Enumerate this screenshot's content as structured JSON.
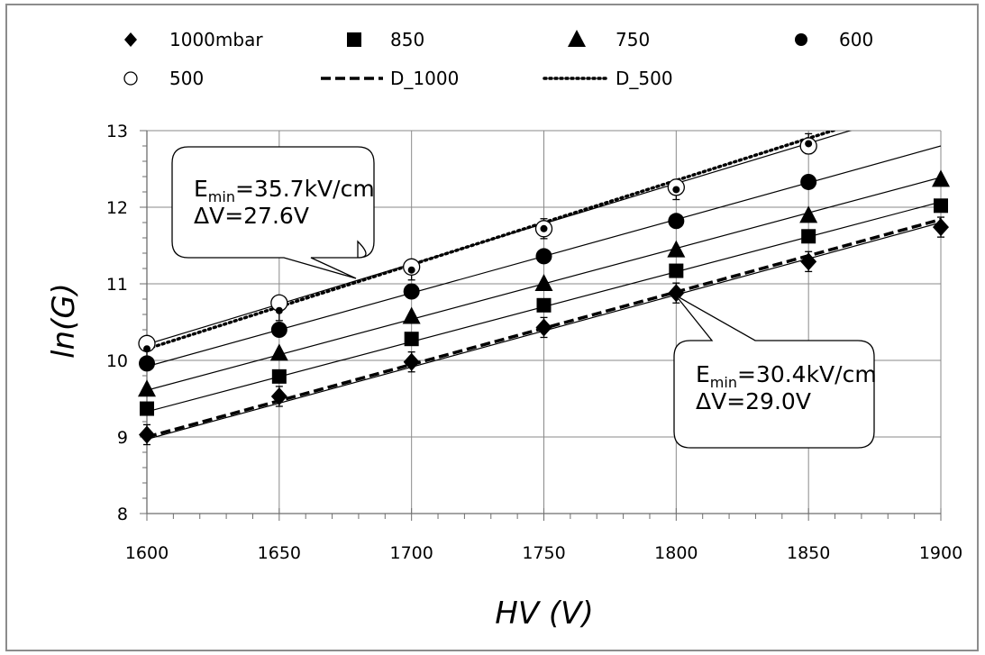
{
  "chart_data": {
    "type": "scatter",
    "xlabel": "HV (V)",
    "ylabel": "ln(G)",
    "xlim": [
      1600,
      1900
    ],
    "ylim": [
      8,
      13
    ],
    "x_ticks": [
      "1600",
      "1650",
      "1700",
      "1750",
      "1800",
      "1850",
      "1900"
    ],
    "y_ticks": [
      "8",
      "9",
      "10",
      "11",
      "12",
      "13"
    ],
    "grid": true,
    "legend_position": "top",
    "x": [
      1600,
      1650,
      1700,
      1750,
      1800,
      1850,
      1900
    ],
    "series": [
      {
        "name": "1000mbar",
        "marker": "diamond",
        "values": [
          9.03,
          9.53,
          9.98,
          10.43,
          10.88,
          11.29,
          11.74
        ],
        "fit": [
          8.97,
          11.8
        ]
      },
      {
        "name": "850",
        "marker": "square",
        "values": [
          9.37,
          9.79,
          10.28,
          10.72,
          11.17,
          11.62,
          12.02
        ],
        "fit": [
          9.33,
          12.07
        ]
      },
      {
        "name": "750",
        "marker": "triangle",
        "values": [
          9.62,
          10.09,
          10.57,
          11.0,
          11.44,
          11.89,
          12.36
        ],
        "fit": [
          9.61,
          12.39
        ]
      },
      {
        "name": "600",
        "marker": "circle-filled",
        "values": [
          9.96,
          10.4,
          10.9,
          11.36,
          11.82,
          12.33,
          null
        ],
        "fit": [
          9.92,
          12.8
        ]
      },
      {
        "name": "500",
        "marker": "circle-open",
        "values": [
          10.22,
          10.75,
          11.22,
          11.72,
          12.26,
          12.8,
          null
        ],
        "fit": [
          10.21,
          13.36
        ]
      },
      {
        "name": "D_1000",
        "line": "dashed",
        "values": [
          9.0,
          9.42,
          9.88,
          10.38,
          10.88,
          11.34,
          11.84
        ]
      },
      {
        "name": "D_500",
        "line": "dotted",
        "marker": "dot",
        "values": [
          10.15,
          10.65,
          11.18,
          11.72,
          12.23,
          12.83,
          null
        ],
        "fit": [
          10.15,
          13.45
        ]
      }
    ],
    "annotations": [
      {
        "text_main": "E",
        "text_sub": "min",
        "text_rest": "=35.7kV/cm",
        "line2": "ΔV=27.6V"
      },
      {
        "text_main": "E",
        "text_sub": "min",
        "text_rest": "=30.4kV/cm",
        "line2": "ΔV=29.0V"
      }
    ]
  }
}
